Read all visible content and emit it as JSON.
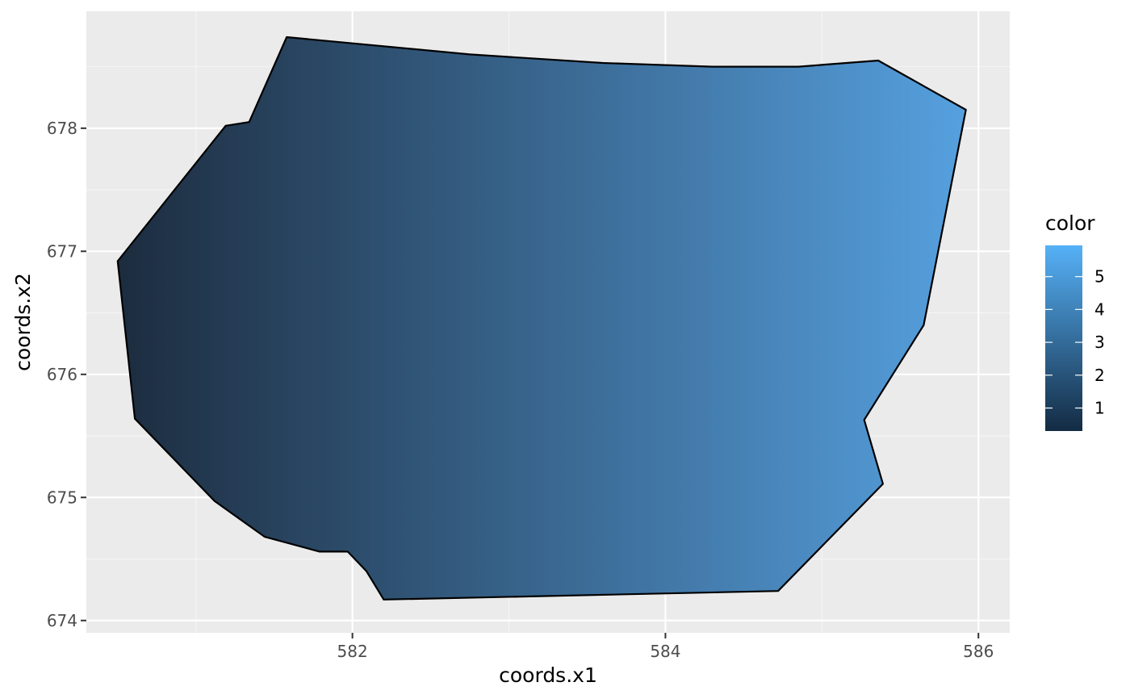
{
  "chart_data": {
    "type": "heatmap",
    "title": "",
    "xlabel": "coords.x1",
    "ylabel": "coords.x2",
    "xlim": [
      580.3,
      586.2
    ],
    "ylim": [
      673.9,
      678.95
    ],
    "x_ticks": [
      582,
      584,
      586
    ],
    "y_ticks": [
      674,
      675,
      676,
      677,
      678
    ],
    "grid": true,
    "fill_variable": "x",
    "fill_gradient": {
      "x_start": 580.45,
      "x_end": 585.95,
      "low_color": "#1c2b3d",
      "high_color": "#56a1e0"
    },
    "polygon": [
      [
        581.58,
        678.74
      ],
      [
        582.75,
        678.6
      ],
      [
        583.6,
        678.53
      ],
      [
        584.3,
        678.5
      ],
      [
        584.85,
        678.5
      ],
      [
        585.36,
        678.55
      ],
      [
        585.92,
        678.15
      ],
      [
        585.65,
        676.4
      ],
      [
        585.27,
        675.63
      ],
      [
        585.39,
        675.11
      ],
      [
        584.72,
        674.24
      ],
      [
        582.2,
        674.17
      ],
      [
        582.09,
        674.4
      ],
      [
        581.97,
        674.56
      ],
      [
        581.79,
        674.56
      ],
      [
        581.44,
        674.68
      ],
      [
        581.12,
        674.97
      ],
      [
        580.61,
        675.64
      ],
      [
        580.5,
        676.92
      ],
      [
        581.19,
        678.02
      ],
      [
        581.34,
        678.05
      ]
    ],
    "legend": {
      "title": "color",
      "position": "right",
      "range": [
        0.3,
        5.95
      ],
      "breaks": [
        1,
        2,
        3,
        4,
        5
      ],
      "low_color": "#132b43",
      "high_color": "#56b1f7"
    },
    "colors": {
      "panel_background": "#ebebeb",
      "grid_major": "#ffffff",
      "grid_minor": "#f5f5f5",
      "outline": "#000000"
    }
  }
}
